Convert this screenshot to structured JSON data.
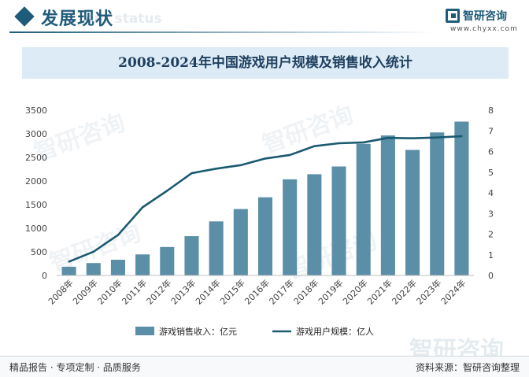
{
  "header": {
    "title": "发展现状",
    "subtitle": "ent status",
    "brand_name": "智研咨询",
    "brand_url": "www.chyxx.com",
    "watermark": "智研咨询"
  },
  "footer": {
    "left": "精品报告 · 专项定制 · 品质服务",
    "right": "资料来源：智研咨询整理"
  },
  "colors": {
    "bar": "#5b8fa8",
    "line": "#1a5a70",
    "accent": "#1f5b7a"
  },
  "chart_data": {
    "type": "bar",
    "title": "2008-2024年中国游戏用户规模及销售收入统计",
    "categories": [
      "2008年",
      "2009年",
      "2010年",
      "2011年",
      "2012年",
      "2013年",
      "2014年",
      "2015年",
      "2016年",
      "2017年",
      "2018年",
      "2019年",
      "2020年",
      "2021年",
      "2022年",
      "2023年",
      "2024年"
    ],
    "series": [
      {
        "name": "游戏销售收入：亿元",
        "type": "bar",
        "axis": "left",
        "values": [
          185,
          263,
          333,
          446,
          603,
          832,
          1145,
          1407,
          1656,
          2036,
          2144,
          2308,
          2787,
          2965,
          2659,
          3029,
          3258
        ]
      },
      {
        "name": "游戏用户规模：亿人",
        "type": "line",
        "axis": "right",
        "values": [
          0.67,
          1.15,
          1.96,
          3.3,
          4.1,
          4.95,
          5.17,
          5.34,
          5.66,
          5.83,
          6.26,
          6.4,
          6.44,
          6.66,
          6.64,
          6.68,
          6.74
        ]
      }
    ],
    "y_left": {
      "min": 0,
      "max": 3500,
      "ticks": [
        0,
        500,
        1000,
        1500,
        2000,
        2500,
        3000,
        3500
      ]
    },
    "y_right": {
      "min": 0,
      "max": 8,
      "ticks": [
        0,
        1,
        2,
        3,
        4,
        5,
        6,
        7,
        8
      ]
    },
    "grid": false,
    "legend_position": "bottom"
  }
}
